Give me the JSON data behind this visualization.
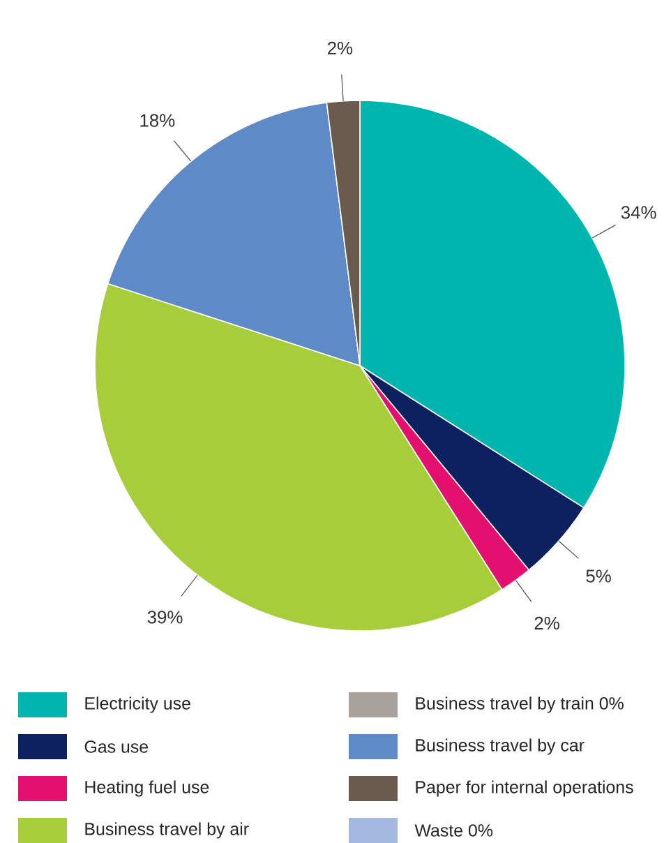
{
  "chart_data": {
    "type": "pie",
    "categories": [
      "Electricity use",
      "Gas use",
      "Heating fuel use",
      "Business travel by air",
      "Business travel by train 0%",
      "Business travel by car",
      "Paper for internal operations",
      "Waste 0%"
    ],
    "values": [
      34,
      5,
      2,
      39,
      0,
      18,
      2,
      0
    ],
    "value_labels": [
      "34%",
      "5%",
      "2%",
      "39%",
      null,
      "18%",
      "2%",
      null
    ],
    "colors": [
      "#00b5ad",
      "#0d2160",
      "#e3106f",
      "#a8cd3a",
      "#a9a29c",
      "#5e8bc8",
      "#6b5a4e",
      "#a3b9e0"
    ],
    "legend": "bottom"
  }
}
